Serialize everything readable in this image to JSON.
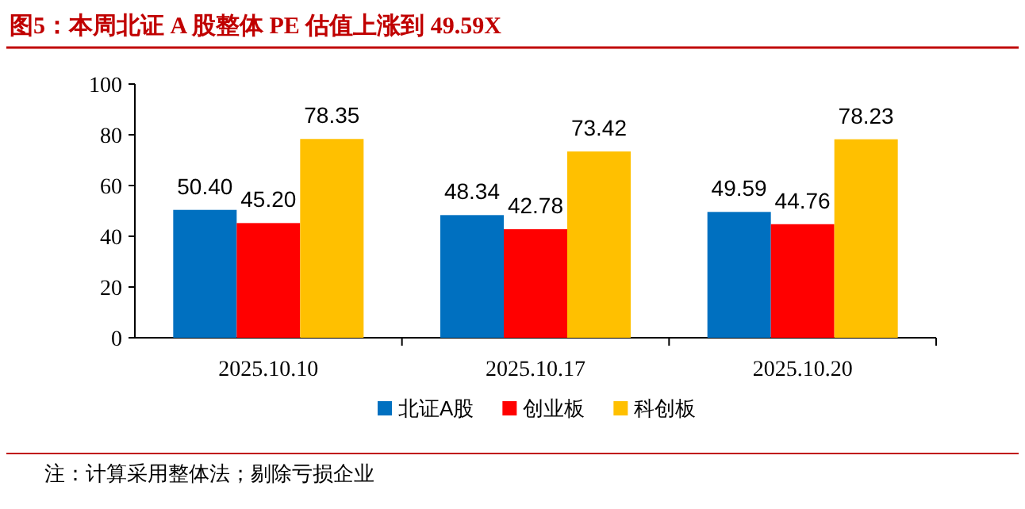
{
  "chart_data": {
    "type": "bar",
    "title": "图5：本周北证 A 股整体 PE 估值上涨到 49.59X",
    "categories": [
      "2025.10.10",
      "2025.10.17",
      "2025.10.20"
    ],
    "series": [
      {
        "name": "北证A股",
        "color": "#0070c0",
        "values": [
          50.4,
          48.34,
          49.59
        ],
        "value_labels": [
          "50.40",
          "48.34",
          "49.59"
        ]
      },
      {
        "name": "创业板",
        "color": "#ff0000",
        "values": [
          45.2,
          42.78,
          44.76
        ],
        "value_labels": [
          "45.20",
          "42.78",
          "44.76"
        ]
      },
      {
        "name": "科创板",
        "color": "#ffc000",
        "values": [
          78.35,
          73.42,
          78.23
        ],
        "value_labels": [
          "78.35",
          "73.42",
          "78.23"
        ]
      }
    ],
    "ylim": [
      0,
      100
    ],
    "yticks": [
      0,
      20,
      40,
      60,
      80,
      100
    ],
    "grid": false,
    "legend": "bottom",
    "annotations": [
      "注：计算采用整体法；剔除亏损企业"
    ]
  }
}
